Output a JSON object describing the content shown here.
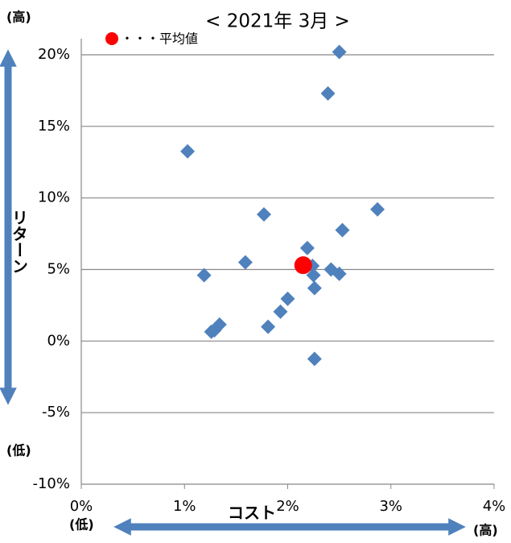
{
  "chart_data": {
    "type": "scatter",
    "title": "< 2021年 3月 >",
    "x_label": "コスト",
    "y_label": "リターン",
    "annotations": {
      "y_high": "(高)",
      "y_low": "(低)",
      "x_low": "(低)",
      "x_high": "(高)"
    },
    "xlim": [
      0,
      4
    ],
    "xticks": [
      {
        "value": 0,
        "label": "0%"
      },
      {
        "value": 1,
        "label": "1%"
      },
      {
        "value": 2,
        "label": "2%"
      },
      {
        "value": 3,
        "label": "3%"
      },
      {
        "value": 4,
        "label": "4%"
      }
    ],
    "ylim": [
      -10,
      20
    ],
    "yticks": [
      {
        "value": -10,
        "label": "-10%"
      },
      {
        "value": -5,
        "label": "-5%"
      },
      {
        "value": 0,
        "label": "0%"
      },
      {
        "value": 5,
        "label": "5%"
      },
      {
        "value": 10,
        "label": "10%"
      },
      {
        "value": 15,
        "label": "15%"
      },
      {
        "value": 20,
        "label": "20%"
      }
    ],
    "grid": true,
    "series": [
      {
        "color": "#4f81bd",
        "marker": "diamond",
        "x": [
          2.5,
          2.39,
          1.03,
          2.87,
          1.77,
          2.53,
          2.19,
          1.59,
          2.24,
          1.19,
          2.42,
          2.5,
          2.25,
          2.26,
          2.0,
          1.93,
          1.81,
          1.34,
          1.29,
          1.26,
          2.26
        ],
        "values": [
          20.2,
          17.3,
          13.25,
          9.2,
          8.85,
          7.75,
          6.5,
          5.5,
          5.25,
          4.6,
          5.0,
          4.7,
          4.6,
          3.7,
          2.95,
          2.05,
          1.0,
          1.15,
          0.75,
          0.65,
          -1.25
        ]
      },
      {
        "name": "・・・平均値",
        "color": "#ff0000",
        "marker": "circle",
        "x": [
          2.15
        ],
        "values": [
          5.3
        ]
      }
    ]
  }
}
